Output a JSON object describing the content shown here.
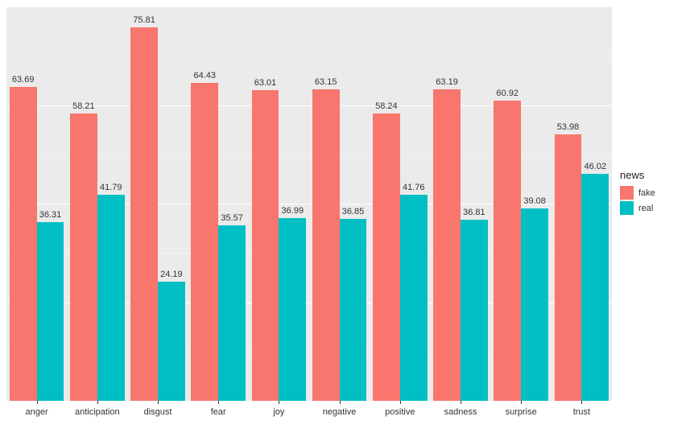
{
  "chart": {
    "type": "bar",
    "background_color": "#ffffff",
    "plot_background_color": "#ebebeb",
    "grid_color": "#ffffff",
    "grid_minor_color": "#f3f3f3",
    "label_fontsize": 11,
    "label_color": "#333333",
    "y_max": 80,
    "y_min": 0,
    "bar_width_ratio": 0.45,
    "categories": [
      "anger",
      "anticipation",
      "disgust",
      "fear",
      "joy",
      "negative",
      "positive",
      "sadness",
      "surprise",
      "trust"
    ],
    "series": [
      {
        "name": "fake",
        "color": "#f8766d",
        "values": [
          63.69,
          58.21,
          75.81,
          64.43,
          63.01,
          63.15,
          58.24,
          63.19,
          60.92,
          53.98
        ]
      },
      {
        "name": "real",
        "color": "#00bfc4",
        "values": [
          36.31,
          41.79,
          24.19,
          35.57,
          36.99,
          36.85,
          41.76,
          36.81,
          39.08,
          46.02
        ]
      }
    ],
    "legend": {
      "title": "news",
      "title_fontsize": 13,
      "swatch_bg": "#d9d9d9"
    }
  }
}
